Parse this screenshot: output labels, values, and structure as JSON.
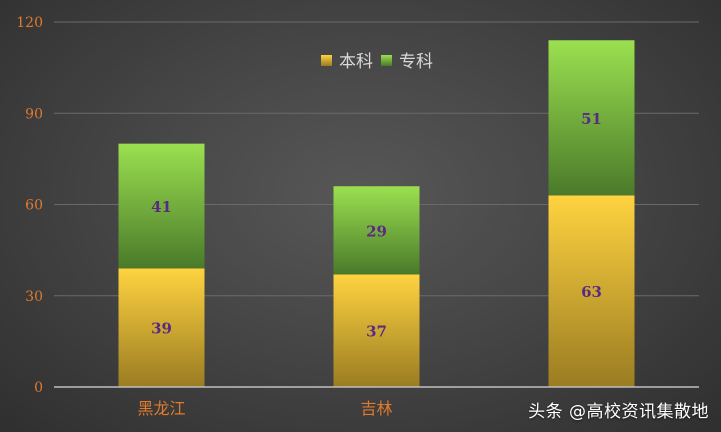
{
  "chart_data": {
    "type": "bar",
    "stacked": true,
    "categories": [
      "黑龙江",
      "吉林",
      ""
    ],
    "series": [
      {
        "name": "本科",
        "values": [
          39,
          37,
          63
        ],
        "color_top": "#ffd340",
        "color_bottom": "#9a7c22"
      },
      {
        "name": "专科",
        "values": [
          41,
          29,
          51
        ],
        "color_top": "#9be050",
        "color_bottom": "#4a7a2a"
      }
    ],
    "ylim": [
      0,
      120
    ],
    "yticks": [
      0,
      30,
      60,
      90,
      120
    ],
    "grid": true,
    "legend_position": "top-center",
    "colors": {
      "tick_label": "#e07a2e",
      "category_label": "#e07a2e",
      "data_label": "#5a2a82",
      "legend_text": "#d9d9d9",
      "grid": "#6a6a6a",
      "axis": "#bfbfbf"
    }
  },
  "watermark": "头条 @高校资讯集散地"
}
